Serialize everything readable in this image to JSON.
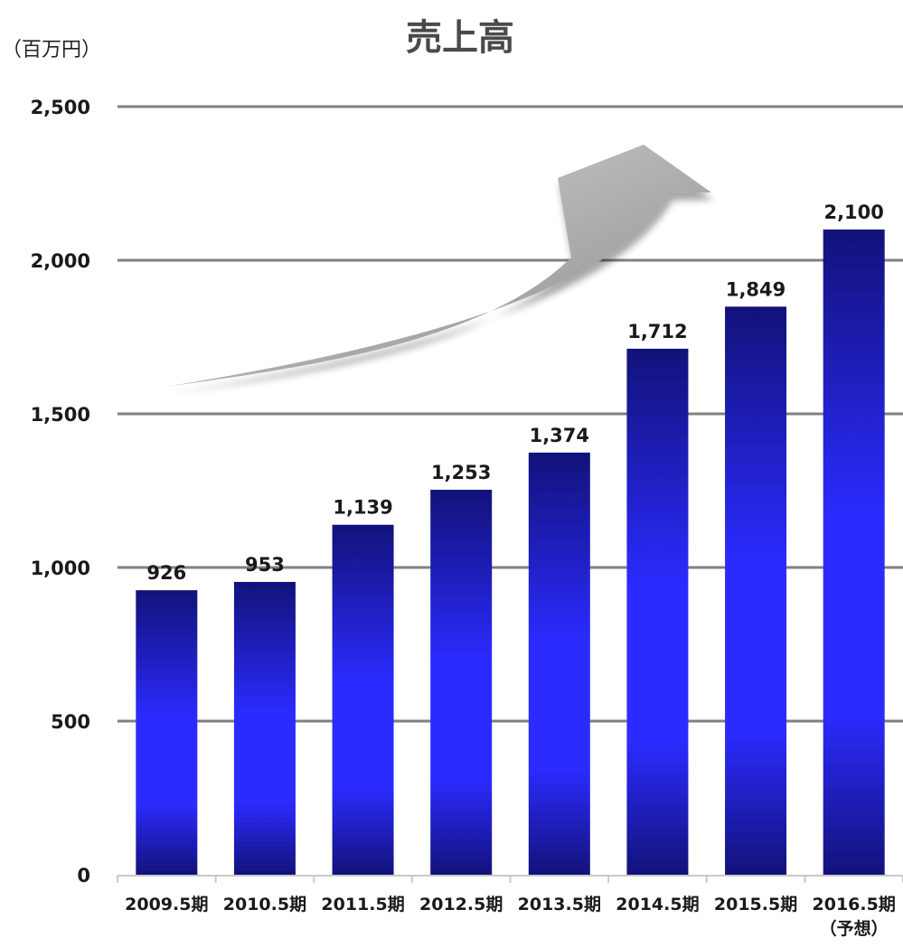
{
  "chart_data": {
    "type": "bar",
    "title": "売上高",
    "ylabel": "（百万円）",
    "xlabel": "",
    "ylim": [
      0,
      2500
    ],
    "yticks": [
      0,
      500,
      1000,
      1500,
      2000,
      2500
    ],
    "ytick_labels": [
      "0",
      "500",
      "1,000",
      "1,500",
      "2,000",
      "2,500"
    ],
    "grid": true,
    "categories": [
      "2009.5期",
      "2010.5期",
      "2011.5期",
      "2012.5期",
      "2013.5期",
      "2014.5期",
      "2015.5期",
      "2016.5期"
    ],
    "category_notes": [
      "",
      "",
      "",
      "",
      "",
      "",
      "",
      "（予想）"
    ],
    "values": [
      926,
      953,
      1139,
      1253,
      1374,
      1712,
      1849,
      2100
    ],
    "value_labels": [
      "926",
      "953",
      "1,139",
      "1,253",
      "1,374",
      "1,712",
      "1,849",
      "2,100"
    ],
    "colors": {
      "bar_dark": "#12127a",
      "bar_bright": "#2b2bff",
      "grid": "#808080",
      "arrow_light": "#d8d8d8",
      "arrow_dark": "#8a8a8a"
    },
    "decoration": "upward-trend-arrow"
  }
}
